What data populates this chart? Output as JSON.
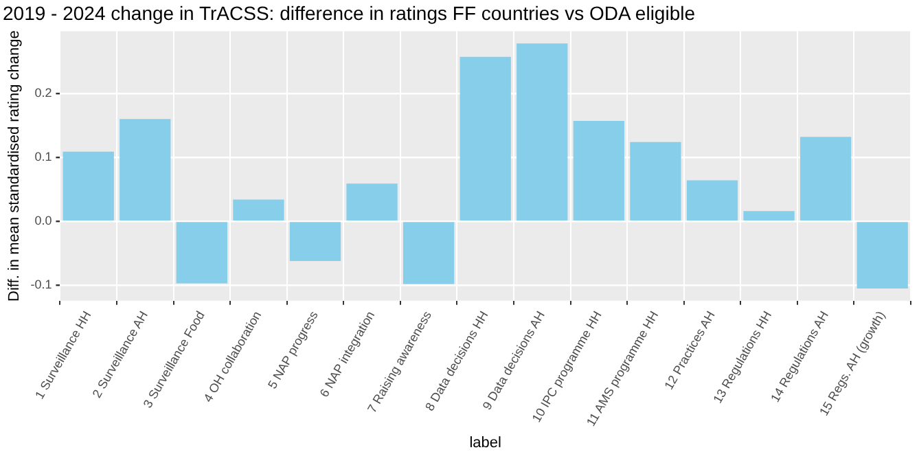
{
  "chart_data": {
    "type": "bar",
    "title": "2019 - 2024 change in TrACSS: difference in ratings FF countries vs ODA eligible",
    "xlabel": "label",
    "ylabel": "Diff. in mean standardised rating change",
    "categories": [
      "1 Surveillance HH",
      "2 Surveillance AH",
      "3 Surveillance Food",
      "4 OH collaboration",
      "5 NAP progress",
      "6 NAP integration",
      "7 Raising awareness",
      "8 Data decisions HH",
      "9 Data decisions AH",
      "10 IPC programme HH",
      "11 AMS programme HH",
      "12 Practices AH",
      "13 Regulations HH",
      "14 Regulations AH",
      "15 Regs. AH (growth)"
    ],
    "values": [
      0.109,
      0.16,
      -0.097,
      0.034,
      -0.062,
      0.059,
      -0.098,
      0.257,
      0.278,
      0.157,
      0.124,
      0.064,
      0.016,
      0.132,
      -0.105
    ],
    "color": "#87ceeb",
    "ylim": [
      -0.124,
      0.297
    ],
    "yticks": [
      {
        "value": -0.1,
        "label": "-0.1"
      },
      {
        "value": 0,
        "label": "0.0"
      },
      {
        "value": 0.1,
        "label": "0.1"
      },
      {
        "value": 0.2,
        "label": "0.2"
      }
    ],
    "grid": true
  }
}
